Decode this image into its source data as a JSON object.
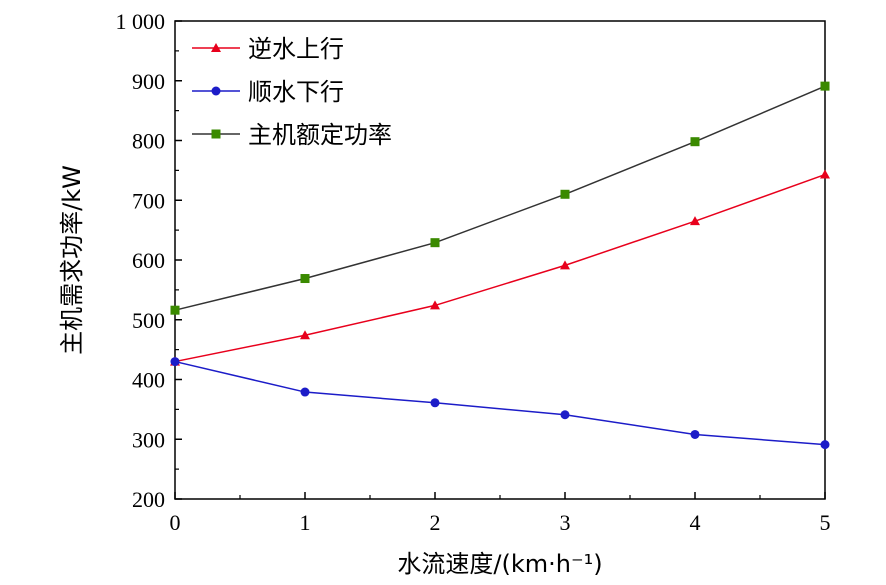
{
  "chart_data": {
    "type": "line",
    "x": [
      0,
      1,
      2,
      3,
      4,
      5
    ],
    "series": [
      {
        "name": "逆水上行",
        "values": [
          430,
          474,
          524,
          591,
          665,
          743
        ],
        "color": "#e8001c",
        "marker": "triangle"
      },
      {
        "name": "顺水下行",
        "values": [
          430,
          379,
          361,
          341,
          308,
          291
        ],
        "color": "#1c1cc8",
        "marker": "circle"
      },
      {
        "name": "主机额定功率",
        "values": [
          516,
          569,
          629,
          710,
          798,
          891
        ],
        "color": "#3a8a00",
        "marker": "square"
      }
    ],
    "line_colors": {
      "逆水上行": "#e8001c",
      "顺水下行": "#1c1cc8",
      "主机额定功率": "#333333"
    },
    "xlabel": "水流速度/(km·h⁻¹)",
    "ylabel": "主机需求功率/kW",
    "xlim": [
      0,
      5
    ],
    "ylim": [
      200,
      1000
    ],
    "x_ticks": [
      "0",
      "1",
      "2",
      "3",
      "4",
      "5"
    ],
    "y_ticks": [
      "200",
      "300",
      "400",
      "500",
      "600",
      "700",
      "800",
      "900",
      "1 000"
    ],
    "legend_position": "top-left",
    "grid": false
  }
}
